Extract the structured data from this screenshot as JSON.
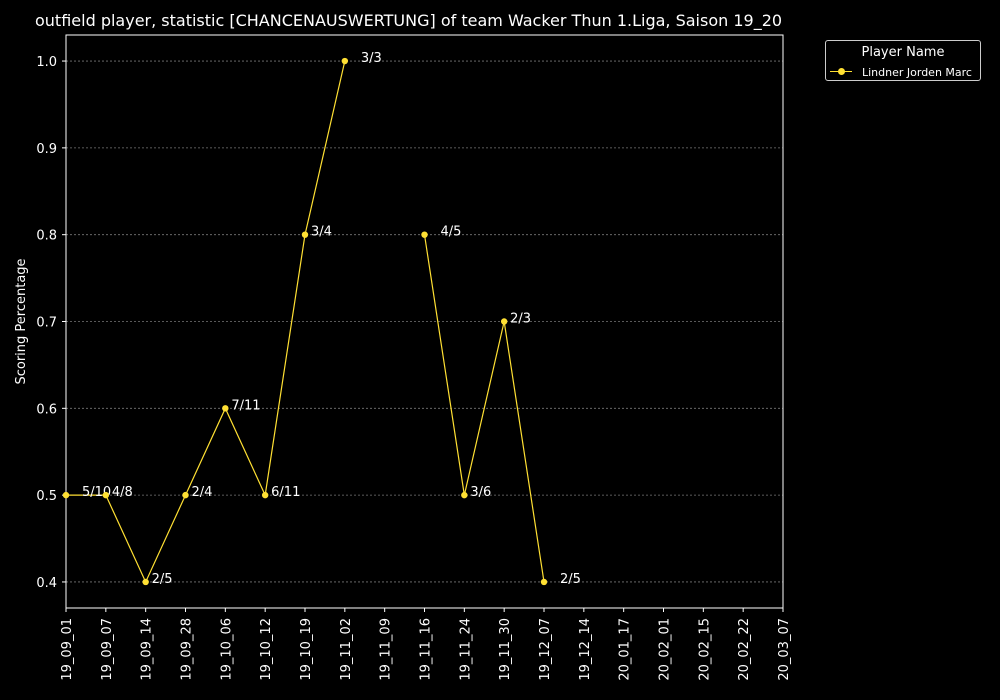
{
  "title": "outfield player, statistic [CHANCENAUSWERTUNG] of team Wacker Thun 1.Liga, Saison 19_20",
  "legend": {
    "title": "Player Name",
    "position": "top-right outside"
  },
  "colors": {
    "background": "#000000",
    "series": "#ffe033",
    "grid": "#777777",
    "axis": "#ffffff"
  },
  "chart_data": {
    "type": "line",
    "ylabel": "Scoring Percentage",
    "xlabel": "",
    "x": [
      "19_09_01",
      "19_09_07",
      "19_09_14",
      "19_09_28",
      "19_10_06",
      "19_10_12",
      "19_10_19",
      "19_11_02",
      "19_11_09",
      "19_11_16",
      "19_11_24",
      "19_11_30",
      "19_12_07",
      "19_12_14",
      "20_01_17",
      "20_02_01",
      "20_02_15",
      "20_02_22",
      "20_03_07"
    ],
    "ylim": [
      0.37,
      1.03
    ],
    "yticks": [
      0.4,
      0.5,
      0.6,
      0.7,
      0.8,
      0.9,
      1.0
    ],
    "grid": true,
    "series": [
      {
        "name": "Lindner Jorden Marc",
        "values": [
          0.5,
          0.5,
          0.4,
          0.5,
          0.6,
          0.5,
          0.8,
          1.0,
          null,
          0.8,
          0.5,
          0.7,
          0.4,
          null,
          null,
          null,
          null,
          null,
          null
        ],
        "labels": [
          "5/10",
          "4/8",
          "2/5",
          "2/4",
          "7/11",
          "6/11",
          "3/4",
          "3/3",
          null,
          "4/5",
          "3/6",
          "2/3",
          "2/5",
          null,
          null,
          null,
          null,
          null,
          null
        ]
      }
    ]
  }
}
